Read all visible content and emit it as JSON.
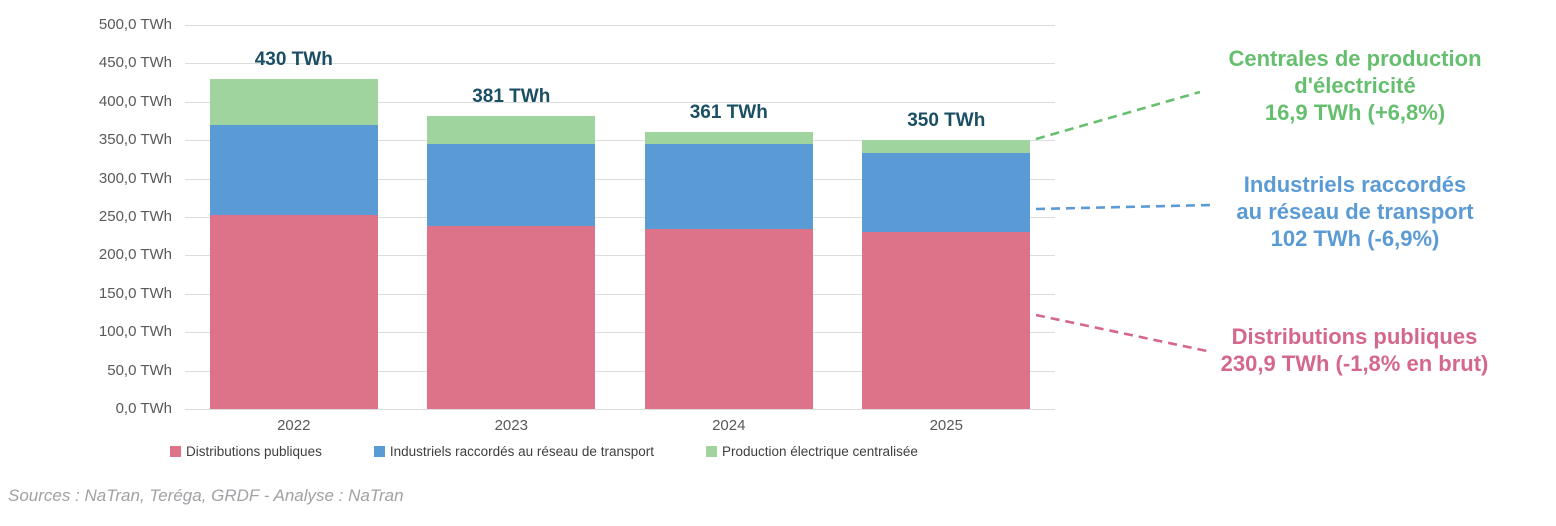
{
  "chart_data": {
    "type": "bar",
    "stacked": true,
    "categories": [
      "2022",
      "2023",
      "2024",
      "2025"
    ],
    "series": [
      {
        "name": "Distributions publiques",
        "color": "#dc7389",
        "values": [
          253,
          238,
          235,
          230.9
        ]
      },
      {
        "name": "Industriels raccordés au réseau de transport",
        "color": "#5b9bd5",
        "values": [
          117,
          107,
          110,
          102
        ]
      },
      {
        "name": "Production électrique centralisée",
        "color": "#9fd49e",
        "values": [
          60,
          36,
          16,
          16.9
        ]
      }
    ],
    "bar_total_labels": [
      "430 TWh",
      "381 TWh",
      "361 TWh",
      "350 TWh"
    ],
    "total_label_color": "#1b4f63",
    "ylim": [
      0,
      500
    ],
    "ytick_step": 50,
    "ytick_labels": [
      "0,0 TWh",
      "50,0 TWh",
      "100,0 TWh",
      "150,0 TWh",
      "200,0 TWh",
      "250,0 TWh",
      "300,0 TWh",
      "350,0 TWh",
      "400,0 TWh",
      "450,0 TWh",
      "500,0 TWh"
    ],
    "grid": true,
    "legend_position": "bottom"
  },
  "annotations": {
    "green": {
      "color": "#66bf6e",
      "lines": [
        "Centrales de production",
        "d'électricité",
        "16,9 TWh (+6,8%)"
      ]
    },
    "blue": {
      "color": "#5b9bd5",
      "lines": [
        "Industriels raccordés",
        "au réseau de transport",
        "102 TWh (-6,9%)"
      ]
    },
    "pink": {
      "color": "#d4678c",
      "lines": [
        "Distributions publiques",
        "230,9 TWh (-1,8% en brut)"
      ]
    }
  },
  "footer": {
    "sources": "Sources : NaTran, Teréga, GRDF - Analyse : NaTran"
  }
}
